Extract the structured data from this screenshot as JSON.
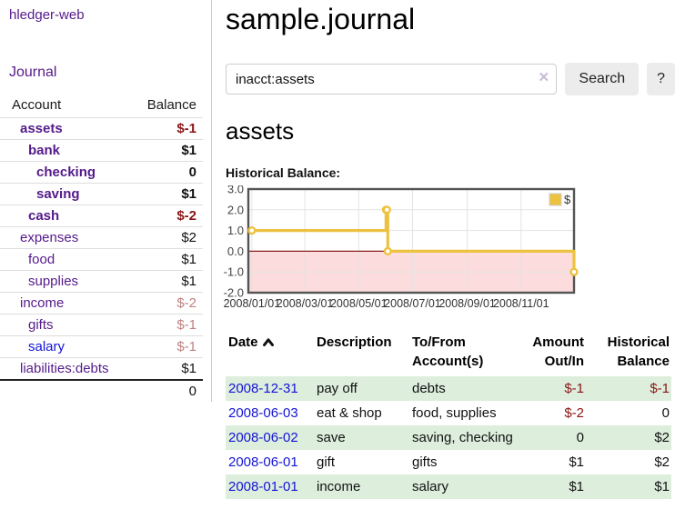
{
  "app": {
    "title": "hledger-web",
    "nav_journal": "Journal"
  },
  "colors": {
    "purple": "#551a8b",
    "blue": "#1414d6",
    "neg_strong": "#8b1414",
    "neg_muted": "#c08080",
    "row_green": "#ddeedd",
    "btn_bg": "#ececec"
  },
  "sidebar": {
    "headers": {
      "account": "Account",
      "balance": "Balance"
    },
    "accounts": [
      {
        "name": "assets",
        "level": 1,
        "balance": "$-1",
        "emph": true,
        "neg": "strong"
      },
      {
        "name": "bank",
        "level": 2,
        "balance": "$1",
        "emph": true,
        "neg": "none"
      },
      {
        "name": "checking",
        "level": 3,
        "balance": "0",
        "emph": true,
        "neg": "none"
      },
      {
        "name": "saving",
        "level": 3,
        "balance": "$1",
        "emph": true,
        "neg": "none"
      },
      {
        "name": "cash",
        "level": 2,
        "balance": "$-2",
        "emph": true,
        "neg": "strong"
      },
      {
        "name": "expenses",
        "level": 1,
        "balance": "$2",
        "emph": false,
        "neg": "none"
      },
      {
        "name": "food",
        "level": 2,
        "balance": "$1",
        "emph": false,
        "neg": "none"
      },
      {
        "name": "supplies",
        "level": 2,
        "balance": "$1",
        "emph": false,
        "neg": "none"
      },
      {
        "name": "income",
        "level": 1,
        "balance": "$-2",
        "emph": false,
        "neg": "muted"
      },
      {
        "name": "gifts",
        "level": 2,
        "balance": "$-1",
        "emph": false,
        "neg": "muted"
      },
      {
        "name": "salary",
        "level": 2,
        "balance": "$-1",
        "emph": false,
        "neg": "muted",
        "unvisited": true
      },
      {
        "name": "liabilities:debts",
        "level": 1,
        "balance": "$1",
        "emph": false,
        "neg": "none"
      }
    ],
    "total": "0"
  },
  "header": {
    "title": "sample.journal"
  },
  "search": {
    "value": "inacct:assets",
    "clear_icon": "×",
    "button": "Search",
    "help_button": "?"
  },
  "account_page": {
    "title": "assets",
    "chart_label": "Historical Balance:"
  },
  "chart_data": {
    "type": "line",
    "title": "Historical Balance:",
    "series": [
      {
        "name": "$",
        "color": "#edc240",
        "step": true,
        "points": [
          {
            "x": "2008-01-01",
            "y": 1
          },
          {
            "x": "2008-06-01",
            "y": 2
          },
          {
            "x": "2008-06-02",
            "y": 2
          },
          {
            "x": "2008-06-03",
            "y": 0
          },
          {
            "x": "2008-12-31",
            "y": -1
          }
        ]
      }
    ],
    "x_range": [
      "2007-12-28",
      "2008-12-31"
    ],
    "x_ticks": [
      "2008/01/01",
      "2008/03/01",
      "2008/05/01",
      "2008/07/01",
      "2008/09/01",
      "2008/11/01"
    ],
    "y_ticks": [
      3.0,
      2.0,
      1.0,
      0.0,
      -1.0,
      -2.0
    ],
    "ylim": [
      -2,
      3
    ],
    "legend": {
      "label": "$",
      "position": "top-right"
    },
    "grid": true,
    "grid_color": "#e3e3e3",
    "border_color": "#545454",
    "negative_zone_fill": "#fcdcdc",
    "zero_line_color": "#8b2020"
  },
  "register": {
    "headers": {
      "date": "Date",
      "description": "Description",
      "accounts": "To/From Account(s)",
      "amount": "Amount Out/In",
      "balance": "Historical Balance"
    },
    "sort": {
      "column": "date",
      "direction": "asc"
    },
    "rows": [
      {
        "date": "2008-12-31",
        "description": "pay off",
        "accounts": "debts",
        "amount": "$-1",
        "balance": "$-1"
      },
      {
        "date": "2008-06-03",
        "description": "eat & shop",
        "accounts": "food, supplies",
        "amount": "$-2",
        "balance": "0"
      },
      {
        "date": "2008-06-02",
        "description": "save",
        "accounts": "saving, checking",
        "amount": "0",
        "balance": "$2"
      },
      {
        "date": "2008-06-01",
        "description": "gift",
        "accounts": "gifts",
        "amount": "$1",
        "balance": "$2"
      },
      {
        "date": "2008-01-01",
        "description": "income",
        "accounts": "salary",
        "amount": "$1",
        "balance": "$1"
      }
    ]
  }
}
